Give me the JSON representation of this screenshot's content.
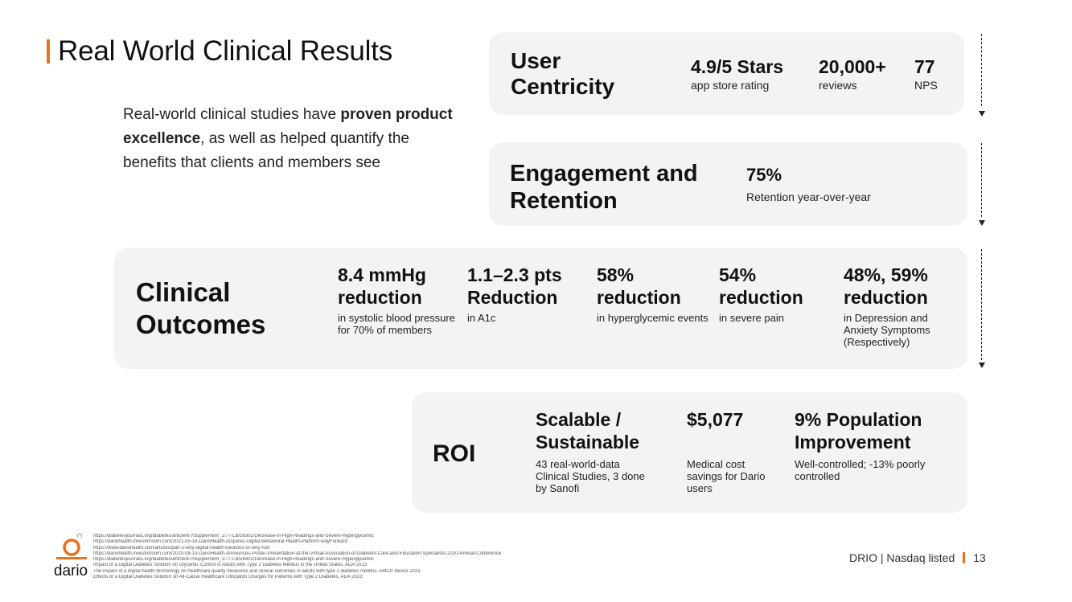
{
  "slide": {
    "title": "Real World Clinical Results",
    "intro": {
      "part1": "Real-world clinical studies have ",
      "bold": "proven product excellence",
      "part2": ", as well as helped quantify the benefits that clients and members see"
    }
  },
  "user_centricity": {
    "heading": "User Centricity",
    "metrics": [
      {
        "value": "4.9/5 Stars",
        "label": "app store rating"
      },
      {
        "value": "20,000+",
        "label": "reviews"
      },
      {
        "value": "77",
        "label": "NPS"
      }
    ]
  },
  "engagement": {
    "heading": "Engagement and Retention",
    "metric": {
      "value": "75%",
      "label": "Retention year-over-year"
    }
  },
  "clinical": {
    "heading": "Clinical Outcomes",
    "metrics": [
      {
        "value": "8.4 mmHg reduction",
        "label": "in systolic blood pressure for 70% of members"
      },
      {
        "value": "1.1–2.3 pts Reduction",
        "label": "in A1c"
      },
      {
        "value": "58% reduction",
        "label": "in hyperglycemic events"
      },
      {
        "value": "54% reduction",
        "label": "in severe pain"
      },
      {
        "value": "48%, 59% reduction",
        "label": "in Depression and Anxiety Symptoms (Respectively)"
      }
    ]
  },
  "roi": {
    "heading": "ROI",
    "metrics": [
      {
        "value": "Scalable / Sustainable",
        "label": "43 real-world-data Clinical Studies, 3 done by Sanofi"
      },
      {
        "value": "$5,077",
        "label": "Medical cost savings for Dario users"
      },
      {
        "value": "9% Population Improvement",
        "label": "Well-controlled; -13% poorly controlled"
      }
    ]
  },
  "footer": {
    "logo_text": "dario",
    "ref_mark": "(*)",
    "references": [
      "https://diabetesjournals.org/diabetes/article/67/Supplement_1/77-LB/58302/Decrease-in-High-Readings-and-Severe-Hyperglycemic",
      "https://dariohealth.investorroom.com/2021-05-18-DarioHealth-Acquires-Digital-Behavioral-Health-Platform-wayForward",
      "https://www.dariohealth.com/articles/part-2-why-digital-health-solutions-or-why-not/",
      "https://dariohealth.investorroom.com/2020-08-13-DarioHealth-Announces-Poster-Presentation-at-the-Virtual-Association-of-Diabetes-Care-and-Education-Specialists-2020-Annual-Conference",
      "https://diabetesjournals.org/diabetes/article/67/Supplement_1/77-LB/58302/Decrease-in-High-Readings-and-Severe-Hyperglycemic",
      "Impact of a Digital Diabetes Solution on Glycemic Control in Adults with Type 2 Diabetes Mellitus in the United States, ADA 2023",
      "The impact of a digital health technology on healthcare quality measures and clinical outcomes in adults with type 2 diabetes mellitus, AMCP-Nexus 2023",
      "Effects of a Digital Diabetes Solution on All-Cause Healthcare Utilization Charges for Patients with Type 2 Diabetes, ADA 2023"
    ],
    "ticker": "DRIO | Nasdaq listed",
    "page_number": "13",
    "accent_color": "#e8711c",
    "card_color": "#f3f3f3"
  }
}
